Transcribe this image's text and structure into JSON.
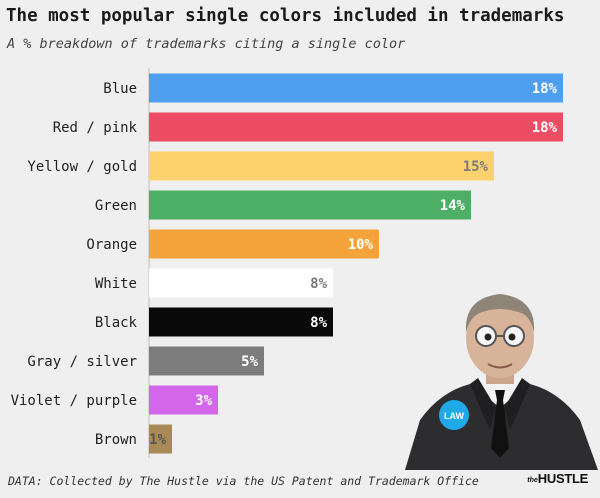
{
  "header": {
    "title": "The most popular single colors included in trademarks",
    "subtitle": "A % breakdown of trademarks citing a single color"
  },
  "footer": {
    "source": "DATA: Collected by The Hustle via the US Patent and Trademark Office",
    "logo_prefix": "the",
    "logo_word": "HUSTLE"
  },
  "illustration": {
    "badge_text": "LAW"
  },
  "chart_data": {
    "type": "bar",
    "orientation": "horizontal",
    "title": "The most popular single colors included in trademarks",
    "subtitle": "A % breakdown of trademarks citing a single color",
    "categories": [
      "Blue",
      "Red / pink",
      "Yellow / gold",
      "Green",
      "Orange",
      "White",
      "Black",
      "Gray / silver",
      "Violet / purple",
      "Brown"
    ],
    "values": [
      18,
      18,
      15,
      14,
      10,
      8,
      8,
      5,
      3,
      1
    ],
    "value_labels": [
      "18%",
      "18%",
      "15%",
      "14%",
      "10%",
      "8%",
      "8%",
      "5%",
      "3%",
      "1%"
    ],
    "bar_colors": [
      "#4e9ff2",
      "#ec4d63",
      "#fcd26c",
      "#4caf65",
      "#f4a33a",
      "#ffffff",
      "#0a0a0a",
      "#7c7c7c",
      "#d466ec",
      "#a98a57"
    ],
    "label_colors": [
      "#ffffff",
      "#ffffff",
      "#7a7a7a",
      "#ffffff",
      "#ffffff",
      "#7a7a7a",
      "#ffffff",
      "#ffffff",
      "#ffffff",
      "#555555"
    ],
    "xlim": [
      0,
      18
    ],
    "grid": false,
    "legend": "none"
  }
}
